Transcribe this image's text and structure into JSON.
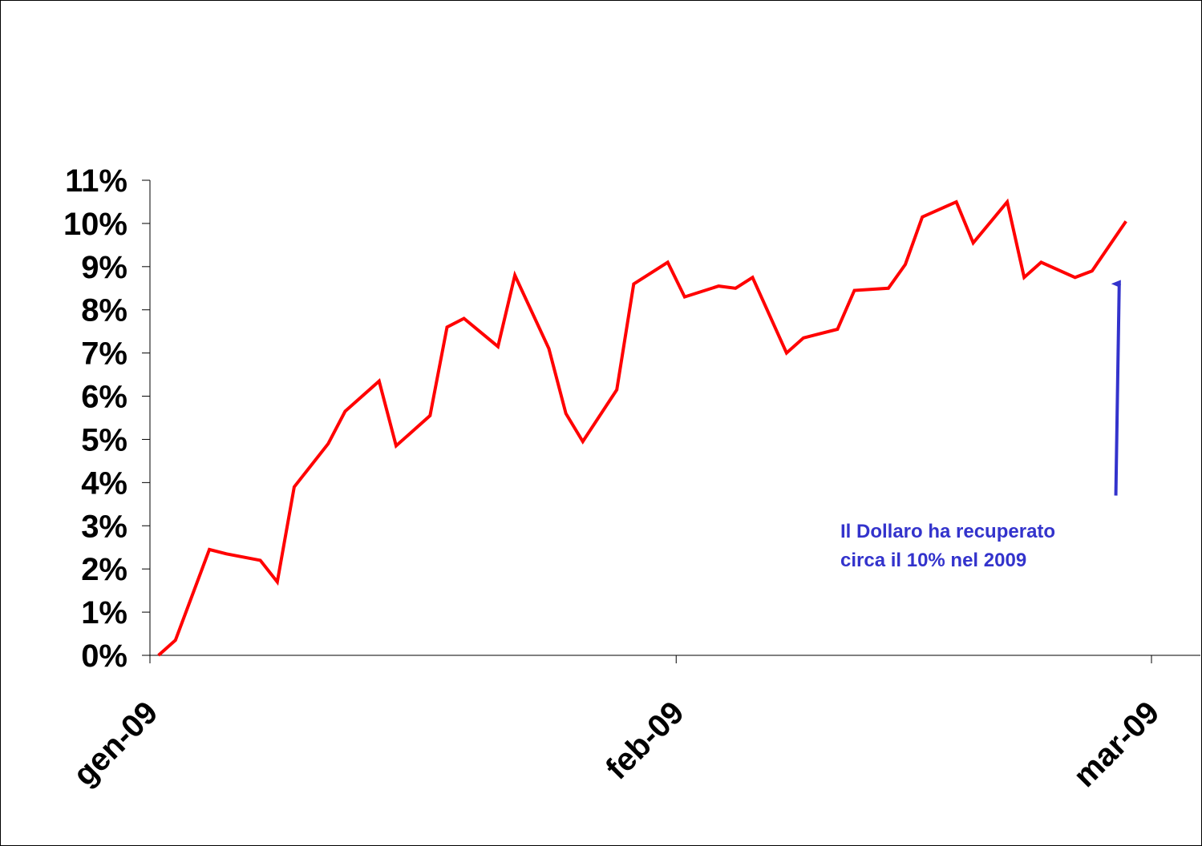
{
  "chart_data": {
    "type": "line",
    "title": "",
    "xlabel": "",
    "ylabel": "",
    "x_tick_labels": [
      "gen-09",
      "feb-09",
      "mar-09"
    ],
    "x_ticks": [
      0,
      31,
      59
    ],
    "ylim": [
      0,
      11
    ],
    "y_ticks": [
      0,
      1,
      2,
      3,
      4,
      5,
      6,
      7,
      8,
      9,
      10,
      11
    ],
    "y_tick_labels": [
      "0%",
      "1%",
      "2%",
      "3%",
      "4%",
      "5%",
      "6%",
      "7%",
      "8%",
      "9%",
      "10%",
      "11%"
    ],
    "grid": false,
    "legend": "none",
    "line_color": "#ff0000",
    "annotation_color": "#3333cc",
    "series": [
      {
        "values": [
          {
            "x": 0.5,
            "y": 0.0
          },
          {
            "x": 1.5,
            "y": 0.35
          },
          {
            "x": 3.5,
            "y": 2.45
          },
          {
            "x": 4.5,
            "y": 2.35
          },
          {
            "x": 6.5,
            "y": 2.2
          },
          {
            "x": 7.5,
            "y": 1.7
          },
          {
            "x": 8.5,
            "y": 3.9
          },
          {
            "x": 10.5,
            "y": 4.9
          },
          {
            "x": 11.5,
            "y": 5.65
          },
          {
            "x": 13.5,
            "y": 6.35
          },
          {
            "x": 14.5,
            "y": 4.85
          },
          {
            "x": 16.5,
            "y": 5.55
          },
          {
            "x": 17.5,
            "y": 7.6
          },
          {
            "x": 18.5,
            "y": 7.8
          },
          {
            "x": 20.5,
            "y": 7.15
          },
          {
            "x": 21.5,
            "y": 8.8
          },
          {
            "x": 23.5,
            "y": 7.1
          },
          {
            "x": 24.5,
            "y": 5.6
          },
          {
            "x": 25.5,
            "y": 4.95
          },
          {
            "x": 27.5,
            "y": 6.15
          },
          {
            "x": 28.5,
            "y": 8.6
          },
          {
            "x": 30.5,
            "y": 9.1
          },
          {
            "x": 31.5,
            "y": 8.3
          },
          {
            "x": 33.5,
            "y": 8.55
          },
          {
            "x": 34.5,
            "y": 8.5
          },
          {
            "x": 35.5,
            "y": 8.75
          },
          {
            "x": 37.5,
            "y": 7.0
          },
          {
            "x": 38.5,
            "y": 7.35
          },
          {
            "x": 40.5,
            "y": 7.55
          },
          {
            "x": 41.5,
            "y": 8.45
          },
          {
            "x": 43.5,
            "y": 8.5
          },
          {
            "x": 44.5,
            "y": 9.05
          },
          {
            "x": 45.5,
            "y": 10.15
          },
          {
            "x": 47.5,
            "y": 10.5
          },
          {
            "x": 48.5,
            "y": 9.55
          },
          {
            "x": 50.5,
            "y": 10.5
          },
          {
            "x": 51.5,
            "y": 8.75
          },
          {
            "x": 52.5,
            "y": 9.1
          },
          {
            "x": 54.5,
            "y": 8.75
          },
          {
            "x": 55.5,
            "y": 8.9
          },
          {
            "x": 57.5,
            "y": 10.05
          }
        ]
      }
    ],
    "annotation": {
      "lines": [
        "Il Dollaro ha recuperato",
        "circa il 10% nel 2009"
      ],
      "arrow_target": {
        "x": 57.1,
        "y": 8.6
      },
      "arrow_start": {
        "x": 56.9,
        "y": 3.7
      }
    }
  }
}
